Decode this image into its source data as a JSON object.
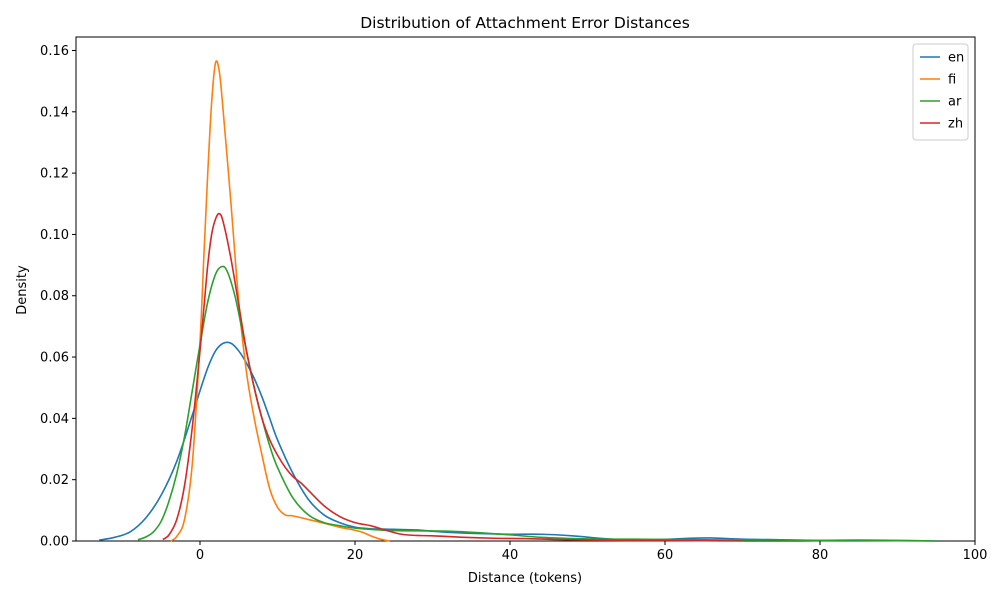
{
  "chart_data": {
    "type": "line",
    "title": "Distribution of Attachment Error Distances",
    "xlabel": "Distance (tokens)",
    "ylabel": "Density",
    "xlim": [
      -16,
      100
    ],
    "ylim": [
      0,
      0.1644
    ],
    "xticks": [
      0,
      20,
      40,
      60,
      80,
      100
    ],
    "yticks": [
      0.0,
      0.02,
      0.04,
      0.06,
      0.08,
      0.1,
      0.12,
      0.14,
      0.16
    ],
    "ytick_labels": [
      "0.00",
      "0.02",
      "0.04",
      "0.06",
      "0.08",
      "0.10",
      "0.12",
      "0.14",
      "0.16"
    ],
    "grid": false,
    "legend_position": "top-right",
    "series": [
      {
        "name": "en",
        "color": "#1f77b4",
        "points": [
          [
            -13,
            0.0003
          ],
          [
            -11,
            0.0012
          ],
          [
            -9,
            0.003
          ],
          [
            -7,
            0.0075
          ],
          [
            -5,
            0.015
          ],
          [
            -3,
            0.026
          ],
          [
            -1,
            0.041
          ],
          [
            0,
            0.049
          ],
          [
            1,
            0.0565
          ],
          [
            2,
            0.062
          ],
          [
            3,
            0.0645
          ],
          [
            4,
            0.0645
          ],
          [
            5,
            0.062
          ],
          [
            6,
            0.058
          ],
          [
            7,
            0.053
          ],
          [
            8,
            0.047
          ],
          [
            9,
            0.04
          ],
          [
            10,
            0.033
          ],
          [
            12,
            0.022
          ],
          [
            14,
            0.0135
          ],
          [
            16,
            0.0085
          ],
          [
            18,
            0.006
          ],
          [
            20,
            0.0045
          ],
          [
            22,
            0.004
          ],
          [
            25,
            0.0038
          ],
          [
            28,
            0.0036
          ],
          [
            31,
            0.003
          ],
          [
            35,
            0.0025
          ],
          [
            40,
            0.0022
          ],
          [
            44,
            0.0022
          ],
          [
            48,
            0.0017
          ],
          [
            52,
            0.0008
          ],
          [
            56,
            0.0003
          ],
          [
            60,
            0.0005
          ],
          [
            63,
            0.0009
          ],
          [
            66,
            0.001
          ],
          [
            70,
            0.0006
          ],
          [
            75,
            0.0004
          ],
          [
            80,
            0.0002
          ],
          [
            85,
            0.0002
          ],
          [
            90,
            0.0001
          ],
          [
            95,
            0.0
          ]
        ]
      },
      {
        "name": "fi",
        "color": "#ff7f0e",
        "points": [
          [
            -3.8,
            0.0
          ],
          [
            -3,
            0.0015
          ],
          [
            -2,
            0.007
          ],
          [
            -1,
            0.025
          ],
          [
            0,
            0.065
          ],
          [
            0.5,
            0.093
          ],
          [
            1,
            0.12
          ],
          [
            1.5,
            0.143
          ],
          [
            2,
            0.156
          ],
          [
            2.5,
            0.153
          ],
          [
            3,
            0.14
          ],
          [
            4,
            0.11
          ],
          [
            5,
            0.078
          ],
          [
            6,
            0.055
          ],
          [
            7,
            0.04
          ],
          [
            8,
            0.028
          ],
          [
            9,
            0.017
          ],
          [
            10,
            0.011
          ],
          [
            11,
            0.0085
          ],
          [
            12,
            0.0082
          ],
          [
            14,
            0.007
          ],
          [
            16,
            0.0058
          ],
          [
            18,
            0.0045
          ],
          [
            20,
            0.0035
          ],
          [
            21,
            0.0028
          ],
          [
            22,
            0.0017
          ],
          [
            23,
            0.0008
          ],
          [
            24,
            0.0002
          ],
          [
            24.5,
            0.0
          ]
        ]
      },
      {
        "name": "ar",
        "color": "#2ca02c",
        "points": [
          [
            -8,
            0.0004
          ],
          [
            -7,
            0.0013
          ],
          [
            -6,
            0.003
          ],
          [
            -5,
            0.0065
          ],
          [
            -4,
            0.013
          ],
          [
            -3,
            0.022
          ],
          [
            -2,
            0.034
          ],
          [
            -1,
            0.049
          ],
          [
            0,
            0.064
          ],
          [
            1,
            0.078
          ],
          [
            2,
            0.087
          ],
          [
            2.8,
            0.0895
          ],
          [
            3.5,
            0.088
          ],
          [
            4.5,
            0.08
          ],
          [
            5.5,
            0.068
          ],
          [
            7,
            0.05
          ],
          [
            8,
            0.04
          ],
          [
            9,
            0.031
          ],
          [
            10,
            0.024
          ],
          [
            12,
            0.014
          ],
          [
            14,
            0.0085
          ],
          [
            16,
            0.006
          ],
          [
            18,
            0.005
          ],
          [
            20,
            0.0042
          ],
          [
            24,
            0.0035
          ],
          [
            28,
            0.0033
          ],
          [
            32,
            0.0032
          ],
          [
            36,
            0.0027
          ],
          [
            40,
            0.002
          ],
          [
            44,
            0.0012
          ],
          [
            48,
            0.0008
          ],
          [
            52,
            0.0006
          ],
          [
            56,
            0.0006
          ],
          [
            60,
            0.0005
          ],
          [
            65,
            0.0004
          ],
          [
            70,
            0.0003
          ],
          [
            75,
            0.0003
          ],
          [
            80,
            0.0002
          ],
          [
            85,
            0.0003
          ],
          [
            90,
            0.0002
          ],
          [
            95,
            0.0
          ]
        ]
      },
      {
        "name": "zh",
        "color": "#d62728",
        "points": [
          [
            -4.8,
            0.0005
          ],
          [
            -4,
            0.002
          ],
          [
            -3,
            0.007
          ],
          [
            -2,
            0.018
          ],
          [
            -1,
            0.037
          ],
          [
            0,
            0.062
          ],
          [
            0.5,
            0.076
          ],
          [
            1,
            0.09
          ],
          [
            1.5,
            0.1
          ],
          [
            2,
            0.105
          ],
          [
            2.5,
            0.1068
          ],
          [
            3,
            0.104
          ],
          [
            4,
            0.092
          ],
          [
            5,
            0.077
          ],
          [
            6,
            0.062
          ],
          [
            7,
            0.05
          ],
          [
            8,
            0.04
          ],
          [
            9,
            0.033
          ],
          [
            10,
            0.028
          ],
          [
            11,
            0.024
          ],
          [
            12,
            0.021
          ],
          [
            13,
            0.019
          ],
          [
            14,
            0.0165
          ],
          [
            16,
            0.0115
          ],
          [
            18,
            0.008
          ],
          [
            20,
            0.006
          ],
          [
            22,
            0.005
          ],
          [
            24,
            0.0035
          ],
          [
            26,
            0.0022
          ],
          [
            28,
            0.0018
          ],
          [
            30,
            0.0017
          ],
          [
            34,
            0.0012
          ],
          [
            38,
            0.0009
          ],
          [
            42,
            0.0008
          ],
          [
            46,
            0.0005
          ],
          [
            50,
            0.0003
          ],
          [
            55,
            0.0002
          ],
          [
            60,
            0.0002
          ],
          [
            65,
            0.0001
          ],
          [
            70,
            0.0
          ]
        ]
      }
    ]
  }
}
